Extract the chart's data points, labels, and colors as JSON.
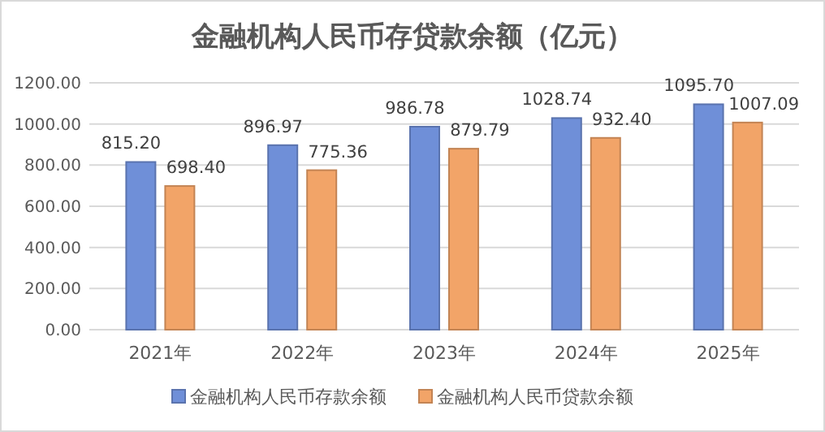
{
  "chart_data": {
    "type": "bar",
    "title": "金融机构人民币存贷款余额（亿元）",
    "categories": [
      "2021年",
      "2022年",
      "2023年",
      "2024年",
      "2025年"
    ],
    "series": [
      {
        "name": "金融机构人民币存款余额",
        "color": "#6f8fd8",
        "values": [
          815.2,
          896.97,
          986.78,
          1028.74,
          1095.7
        ],
        "value_labels": [
          "815.20",
          "896.97",
          "986.78",
          "1028.74",
          "1095.70"
        ]
      },
      {
        "name": "金融机构人民币贷款余额",
        "color": "#f2a468",
        "values": [
          698.4,
          775.36,
          879.79,
          932.4,
          1007.09
        ],
        "value_labels": [
          "698.40",
          "775.36",
          "879.79",
          "932.40",
          "1007.09"
        ]
      }
    ],
    "ylim": [
      0,
      1200
    ],
    "yticks": [
      {
        "value": 0,
        "label": "0.00"
      },
      {
        "value": 200,
        "label": "200.00"
      },
      {
        "value": 400,
        "label": "400.00"
      },
      {
        "value": 600,
        "label": "600.00"
      },
      {
        "value": 800,
        "label": "800.00"
      },
      {
        "value": 1000,
        "label": "1000.00"
      },
      {
        "value": 1200,
        "label": "1200.00"
      }
    ],
    "grid": "y",
    "legend": "bottom"
  }
}
